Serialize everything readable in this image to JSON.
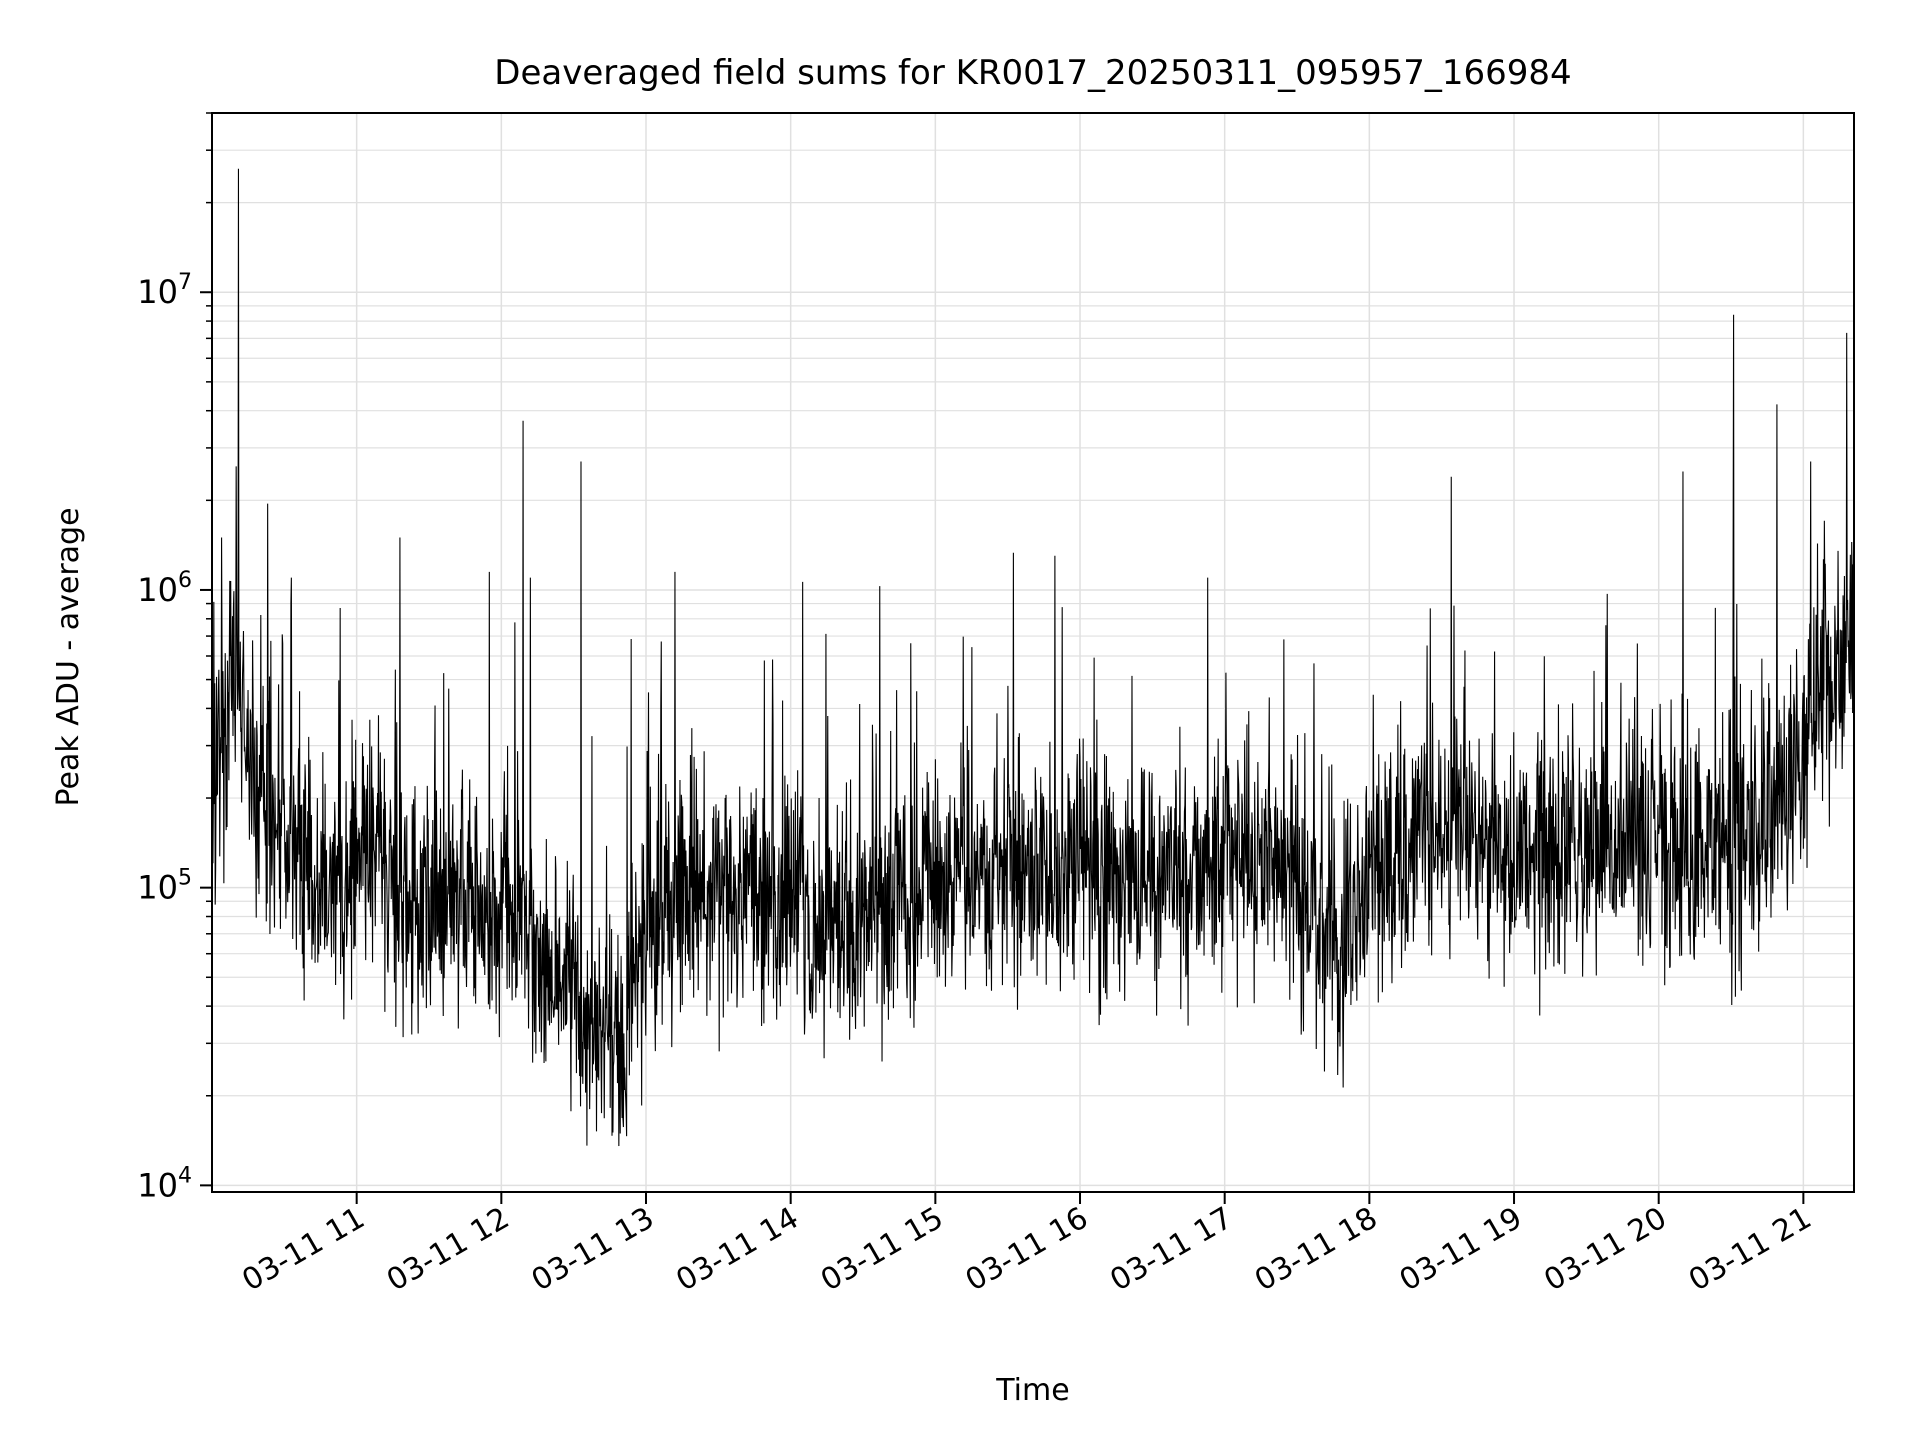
{
  "chart_data": {
    "type": "line",
    "title": "Deaveraged field sums for KR0017_20250311_095957_166984",
    "xlabel": "Time",
    "ylabel": "Peak ADU - average",
    "yscale": "log",
    "ylim": [
      9500,
      40000000
    ],
    "xlim": [
      "2025-03-11 10:00",
      "2025-03-11 21:21"
    ],
    "grid": true,
    "line_color": "#000000",
    "grid_color": "#e0e0e0",
    "y_ticks": [
      {
        "value": 10000,
        "mantissa": "10",
        "exponent": "4"
      },
      {
        "value": 100000,
        "mantissa": "10",
        "exponent": "5"
      },
      {
        "value": 1000000,
        "mantissa": "10",
        "exponent": "6"
      },
      {
        "value": 10000000,
        "mantissa": "10",
        "exponent": "7"
      }
    ],
    "x_ticks": [
      {
        "time": "2025-03-11 11:00",
        "label": "03-11 11"
      },
      {
        "time": "2025-03-11 12:00",
        "label": "03-11 12"
      },
      {
        "time": "2025-03-11 13:00",
        "label": "03-11 13"
      },
      {
        "time": "2025-03-11 14:00",
        "label": "03-11 14"
      },
      {
        "time": "2025-03-11 15:00",
        "label": "03-11 15"
      },
      {
        "time": "2025-03-11 16:00",
        "label": "03-11 16"
      },
      {
        "time": "2025-03-11 17:00",
        "label": "03-11 17"
      },
      {
        "time": "2025-03-11 18:00",
        "label": "03-11 18"
      },
      {
        "time": "2025-03-11 19:00",
        "label": "03-11 19"
      },
      {
        "time": "2025-03-11 20:00",
        "label": "03-11 20"
      },
      {
        "time": "2025-03-11 21:00",
        "label": "03-11 21"
      }
    ],
    "baseline": [
      [
        "2025-03-11 10:00",
        220000
      ],
      [
        "2025-03-11 10:05",
        400000
      ],
      [
        "2025-03-11 10:10",
        500000
      ],
      [
        "2025-03-11 10:15",
        260000
      ],
      [
        "2025-03-11 10:25",
        160000
      ],
      [
        "2025-03-11 10:40",
        110000
      ],
      [
        "2025-03-11 10:55",
        100000
      ],
      [
        "2025-03-11 11:05",
        140000
      ],
      [
        "2025-03-11 11:20",
        90000
      ],
      [
        "2025-03-11 11:40",
        100000
      ],
      [
        "2025-03-11 12:00",
        80000
      ],
      [
        "2025-03-11 12:20",
        55000
      ],
      [
        "2025-03-11 12:40",
        35000
      ],
      [
        "2025-03-11 12:50",
        30000
      ],
      [
        "2025-03-11 12:55",
        60000
      ],
      [
        "2025-03-11 13:10",
        85000
      ],
      [
        "2025-03-11 13:40",
        100000
      ],
      [
        "2025-03-11 14:20",
        75000
      ],
      [
        "2025-03-11 15:00",
        100000
      ],
      [
        "2025-03-11 15:30",
        120000
      ],
      [
        "2025-03-11 16:00",
        110000
      ],
      [
        "2025-03-11 16:30",
        100000
      ],
      [
        "2025-03-11 17:00",
        130000
      ],
      [
        "2025-03-11 17:30",
        100000
      ],
      [
        "2025-03-11 17:48",
        55000
      ],
      [
        "2025-03-11 18:00",
        120000
      ],
      [
        "2025-03-11 18:30",
        150000
      ],
      [
        "2025-03-11 19:00",
        130000
      ],
      [
        "2025-03-11 19:30",
        130000
      ],
      [
        "2025-03-11 20:00",
        150000
      ],
      [
        "2025-03-11 20:30",
        140000
      ],
      [
        "2025-03-11 20:55",
        180000
      ],
      [
        "2025-03-11 21:00",
        300000
      ],
      [
        "2025-03-11 21:10",
        500000
      ],
      [
        "2025-03-11 21:21",
        650000
      ]
    ],
    "spikes": [
      [
        "2025-03-11 10:04",
        1500000
      ],
      [
        "2025-03-11 10:10",
        2600000
      ],
      [
        "2025-03-11 10:11",
        26000000
      ],
      [
        "2025-03-11 10:23",
        1950000
      ],
      [
        "2025-03-11 10:33",
        1100000
      ],
      [
        "2025-03-11 11:18",
        1500000
      ],
      [
        "2025-03-11 11:55",
        1150000
      ],
      [
        "2025-03-11 12:09",
        3700000
      ],
      [
        "2025-03-11 12:12",
        1100000
      ],
      [
        "2025-03-11 12:33",
        2700000
      ],
      [
        "2025-03-11 13:12",
        1150000
      ],
      [
        "2025-03-11 14:37",
        1030000
      ],
      [
        "2025-03-11 16:53",
        1100000
      ],
      [
        "2025-03-11 18:34",
        2400000
      ],
      [
        "2025-03-11 20:10",
        2500000
      ],
      [
        "2025-03-11 20:31",
        8400000
      ],
      [
        "2025-03-11 20:49",
        4200000
      ],
      [
        "2025-03-11 21:03",
        2700000
      ],
      [
        "2025-03-11 21:18",
        7300000
      ]
    ]
  }
}
